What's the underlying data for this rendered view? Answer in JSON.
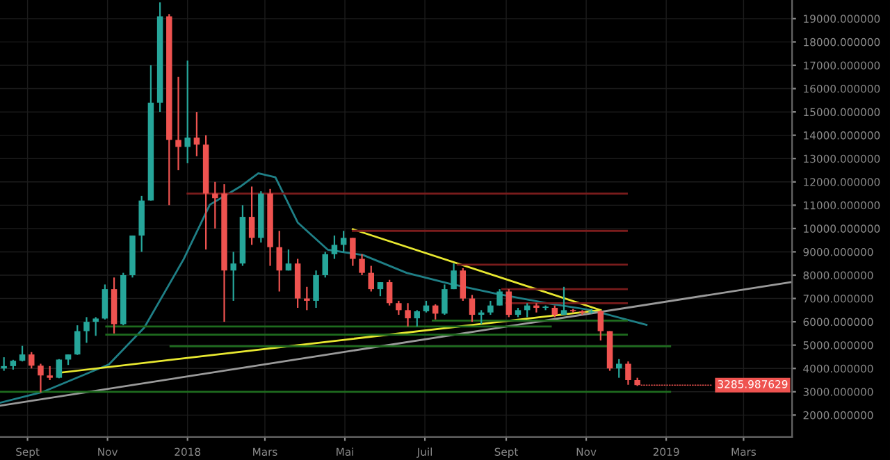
{
  "chart_data": {
    "type": "candlestick",
    "x": [
      "2017-08-14",
      "2017-08-21",
      "2017-08-28",
      "2017-09-04",
      "2017-09-11",
      "2017-09-18",
      "2017-09-25",
      "2017-10-02",
      "2017-10-09",
      "2017-10-16",
      "2017-10-23",
      "2017-10-30",
      "2017-11-06",
      "2017-11-13",
      "2017-11-20",
      "2017-11-27",
      "2017-12-04",
      "2017-12-11",
      "2017-12-18",
      "2017-12-25",
      "2018-01-01",
      "2018-01-08",
      "2018-01-15",
      "2018-01-22",
      "2018-01-29",
      "2018-02-05",
      "2018-02-12",
      "2018-02-19",
      "2018-02-26",
      "2018-03-05",
      "2018-03-12",
      "2018-03-19",
      "2018-03-26",
      "2018-04-02",
      "2018-04-09",
      "2018-04-16",
      "2018-04-23",
      "2018-04-30",
      "2018-05-07",
      "2018-05-14",
      "2018-05-21",
      "2018-05-28",
      "2018-06-04",
      "2018-06-11",
      "2018-06-18",
      "2018-06-25",
      "2018-07-02",
      "2018-07-09",
      "2018-07-16",
      "2018-07-23",
      "2018-07-30",
      "2018-08-06",
      "2018-08-13",
      "2018-08-20",
      "2018-08-27",
      "2018-09-03",
      "2018-09-10",
      "2018-09-17",
      "2018-09-24",
      "2018-10-01",
      "2018-10-08",
      "2018-10-15",
      "2018-10-22",
      "2018-10-29",
      "2018-11-05",
      "2018-11-12",
      "2018-11-19",
      "2018-11-26",
      "2018-12-03",
      "2018-12-10"
    ],
    "ohlc": [
      [
        4000,
        4480,
        3900,
        4100
      ],
      [
        4100,
        4370,
        3950,
        4330
      ],
      [
        4330,
        4970,
        4300,
        4600
      ],
      [
        4600,
        4700,
        4000,
        4120
      ],
      [
        4120,
        4200,
        2970,
        3700
      ],
      [
        3700,
        4100,
        3500,
        3600
      ],
      [
        3600,
        4400,
        3580,
        4380
      ],
      [
        4380,
        4600,
        4150,
        4600
      ],
      [
        4600,
        5850,
        4580,
        5600
      ],
      [
        5600,
        6200,
        5100,
        6000
      ],
      [
        6000,
        6200,
        5400,
        6140
      ],
      [
        6140,
        7600,
        6100,
        7400
      ],
      [
        7400,
        7900,
        5500,
        5900
      ],
      [
        5900,
        8100,
        5850,
        8000
      ],
      [
        8000,
        9700,
        7900,
        9700
      ],
      [
        9700,
        11400,
        9000,
        11200
      ],
      [
        11200,
        17000,
        11200,
        15400
      ],
      [
        15400,
        19700,
        15000,
        19100
      ],
      [
        19100,
        19200,
        11000,
        13800
      ],
      [
        13800,
        16500,
        12500,
        13500
      ],
      [
        13500,
        17200,
        12800,
        13900
      ],
      [
        13900,
        15000,
        13100,
        13600
      ],
      [
        13600,
        14000,
        9100,
        11500
      ],
      [
        11500,
        12000,
        10000,
        11300
      ],
      [
        11500,
        11900,
        6000,
        8200
      ],
      [
        8200,
        9000,
        6900,
        8500
      ],
      [
        8500,
        11000,
        8400,
        10500
      ],
      [
        10500,
        11800,
        9300,
        9600
      ],
      [
        9600,
        11600,
        9400,
        11500
      ],
      [
        11500,
        11700,
        8400,
        9200
      ],
      [
        9200,
        9900,
        7300,
        8200
      ],
      [
        8200,
        9100,
        8200,
        8500
      ],
      [
        8500,
        8700,
        6600,
        7000
      ],
      [
        7000,
        7500,
        6500,
        6900
      ],
      [
        6900,
        8200,
        6600,
        8000
      ],
      [
        8000,
        9000,
        7900,
        8900
      ],
      [
        8900,
        9700,
        8700,
        9300
      ],
      [
        9300,
        9900,
        9000,
        9600
      ],
      [
        9600,
        9600,
        8400,
        8700
      ],
      [
        8700,
        8900,
        8000,
        8100
      ],
      [
        8100,
        8400,
        7300,
        7400
      ],
      [
        7400,
        7700,
        7100,
        7700
      ],
      [
        7700,
        7800,
        6700,
        6800
      ],
      [
        6800,
        6900,
        6300,
        6500
      ],
      [
        6500,
        6800,
        5800,
        6150
      ],
      [
        6150,
        6500,
        5800,
        6450
      ],
      [
        6450,
        6900,
        6400,
        6700
      ],
      [
        6700,
        6750,
        6100,
        6350
      ],
      [
        6350,
        7600,
        6300,
        7400
      ],
      [
        7400,
        8500,
        7400,
        8200
      ],
      [
        8200,
        8300,
        6900,
        7000
      ],
      [
        7000,
        7150,
        6000,
        6300
      ],
      [
        6300,
        6500,
        5900,
        6400
      ],
      [
        6400,
        6900,
        6300,
        6700
      ],
      [
        6700,
        7400,
        6700,
        7300
      ],
      [
        7300,
        7400,
        6200,
        6300
      ],
      [
        6300,
        6600,
        6200,
        6500
      ],
      [
        6500,
        6800,
        6200,
        6700
      ],
      [
        6700,
        6800,
        6400,
        6600
      ],
      [
        6600,
        6700,
        6500,
        6650
      ],
      [
        6600,
        6700,
        6200,
        6300
      ],
      [
        6300,
        7500,
        6300,
        6500
      ],
      [
        6500,
        6550,
        6400,
        6450
      ],
      [
        6450,
        6500,
        6300,
        6400
      ],
      [
        6400,
        6550,
        6350,
        6450
      ],
      [
        6450,
        6500,
        5200,
        5600
      ],
      [
        5600,
        5600,
        3900,
        4000
      ],
      [
        4000,
        4400,
        3600,
        4200
      ],
      [
        4200,
        4300,
        3300,
        3500
      ],
      [
        3500,
        3600,
        3250,
        3285.987629
      ]
    ],
    "colors": [
      "#26a69a",
      "#26a69a",
      "#26a69a",
      "#ef5350",
      "#ef5350",
      "#ef5350",
      "#26a69a",
      "#26a69a",
      "#26a69a",
      "#26a69a",
      "#26a69a",
      "#26a69a",
      "#ef5350",
      "#26a69a",
      "#26a69a",
      "#26a69a",
      "#26a69a",
      "#26a69a",
      "#ef5350",
      "#ef5350",
      "#26a69a",
      "#ef5350",
      "#ef5350",
      "#ef5350",
      "#ef5350",
      "#26a69a",
      "#26a69a",
      "#ef5350",
      "#26a69a",
      "#ef5350",
      "#ef5350",
      "#26a69a",
      "#ef5350",
      "#ef5350",
      "#26a69a",
      "#26a69a",
      "#26a69a",
      "#26a69a",
      "#ef5350",
      "#ef5350",
      "#ef5350",
      "#26a69a",
      "#ef5350",
      "#ef5350",
      "#ef5350",
      "#26a69a",
      "#26a69a",
      "#ef5350",
      "#26a69a",
      "#26a69a",
      "#ef5350",
      "#ef5350",
      "#26a69a",
      "#26a69a",
      "#26a69a",
      "#ef5350",
      "#26a69a",
      "#26a69a",
      "#ef5350",
      "#26a69a",
      "#ef5350",
      "#26a69a",
      "#ef5350",
      "#ef5350",
      "#26a69a",
      "#ef5350",
      "#ef5350",
      "#26a69a",
      "#ef5350",
      "#ef5350"
    ],
    "series": [
      {
        "type": "line",
        "color": "#1f7f86",
        "x": [
          "2017-08-11",
          "2017-09-13",
          "2017-11-02",
          "2017-11-29",
          "2017-12-29",
          "2018-01-18",
          "2018-02-10",
          "2018-02-24",
          "2018-03-09",
          "2018-03-26",
          "2018-04-18",
          "2018-05-15",
          "2018-06-17",
          "2018-07-20",
          "2018-08-23",
          "2018-10-02",
          "2018-11-04",
          "2018-12-17"
        ],
        "values": [
          2530,
          3000,
          4170,
          5750,
          8680,
          11020,
          11790,
          12370,
          12200,
          10260,
          9090,
          8860,
          8100,
          7630,
          7220,
          6800,
          6510,
          5870
        ]
      },
      {
        "type": "line",
        "color": "#e8e830",
        "x": [
          "2017-09-26",
          "2018-11-12"
        ],
        "values": [
          3820,
          6500
        ]
      },
      {
        "type": "line",
        "color": "#e8e830",
        "x": [
          "2018-05-07",
          "2018-11-12"
        ],
        "values": [
          9970,
          6500
        ]
      },
      {
        "type": "line",
        "color": "#9a9a9a",
        "x": [
          "2017-08-11",
          "2019-04-06"
        ],
        "values": [
          2400,
          7700
        ]
      },
      {
        "type": "line",
        "color": "#7a1c1c",
        "x": [
          "2018-01-01",
          "2018-12-02"
        ],
        "values": [
          11500,
          11500
        ]
      },
      {
        "type": "line",
        "color": "#7a1c1c",
        "x": [
          "2018-05-07",
          "2018-12-02"
        ],
        "values": [
          9900,
          9900
        ]
      },
      {
        "type": "line",
        "color": "#7a1c1c",
        "x": [
          "2018-07-26",
          "2018-12-02"
        ],
        "values": [
          8450,
          8450
        ]
      },
      {
        "type": "line",
        "color": "#7a1c1c",
        "x": [
          "2018-08-29",
          "2018-12-02"
        ],
        "values": [
          7400,
          7400
        ]
      },
      {
        "type": "line",
        "color": "#7a1c1c",
        "x": [
          "2018-09-01",
          "2018-12-02"
        ],
        "values": [
          6800,
          6800
        ]
      },
      {
        "type": "line",
        "color": "#1e6b1e",
        "x": [
          "2017-10-31",
          "2018-10-05"
        ],
        "values": [
          5800,
          5800
        ]
      },
      {
        "type": "line",
        "color": "#1e6b1e",
        "x": [
          "2018-07-07",
          "2018-12-02"
        ],
        "values": [
          6050,
          6050
        ]
      },
      {
        "type": "line",
        "color": "#1e6b1e",
        "x": [
          "2017-10-31",
          "2018-12-02"
        ],
        "values": [
          5450,
          5450
        ]
      },
      {
        "type": "line",
        "color": "#1e6b1e",
        "x": [
          "2017-12-19",
          "2019-01-04"
        ],
        "values": [
          4950,
          4950
        ]
      },
      {
        "type": "line",
        "color": "#1e6b1e",
        "x": [
          "2017-08-11",
          "2019-01-04"
        ],
        "values": [
          3000,
          3000
        ]
      }
    ],
    "annotations": [
      {
        "text": "3285.987629",
        "x": "2018-12-10",
        "y": 3285.987629
      }
    ],
    "xlim": [
      "2017-08-11",
      "2019-04-07"
    ],
    "xticks": [
      {
        "value": "2017-09-01",
        "label": "Sept"
      },
      {
        "value": "2017-11-01",
        "label": "Nov"
      },
      {
        "value": "2018-01-01",
        "label": "2018"
      },
      {
        "value": "2018-03-01",
        "label": "Mars"
      },
      {
        "value": "2018-05-01",
        "label": "Mai"
      },
      {
        "value": "2018-07-01",
        "label": "Juil"
      },
      {
        "value": "2018-09-01",
        "label": "Sept"
      },
      {
        "value": "2018-11-01",
        "label": "Nov"
      },
      {
        "value": "2019-01-01",
        "label": "2019"
      },
      {
        "value": "2019-03-01",
        "label": "Mars"
      }
    ],
    "ylim": [
      1060,
      19800
    ],
    "yticks": [
      {
        "value": 2000,
        "label": "2000.000000"
      },
      {
        "value": 3000,
        "label": "3000.000000"
      },
      {
        "value": 4000,
        "label": "4000.000000"
      },
      {
        "value": 5000,
        "label": "5000.000000"
      },
      {
        "value": 6000,
        "label": "6000.000000"
      },
      {
        "value": 7000,
        "label": "7000.000000"
      },
      {
        "value": 8000,
        "label": "8000.000000"
      },
      {
        "value": 9000,
        "label": "9000.000000"
      },
      {
        "value": 10000,
        "label": "10000.000000"
      },
      {
        "value": 11000,
        "label": "11000.000000"
      },
      {
        "value": 12000,
        "label": "12000.000000"
      },
      {
        "value": 13000,
        "label": "13000.000000"
      },
      {
        "value": 14000,
        "label": "14000.000000"
      },
      {
        "value": 15000,
        "label": "15000.000000"
      },
      {
        "value": 16000,
        "label": "16000.000000"
      },
      {
        "value": 17000,
        "label": "17000.000000"
      },
      {
        "value": 18000,
        "label": "18000.000000"
      },
      {
        "value": 19000,
        "label": "19000.000000"
      }
    ],
    "grid": true
  }
}
